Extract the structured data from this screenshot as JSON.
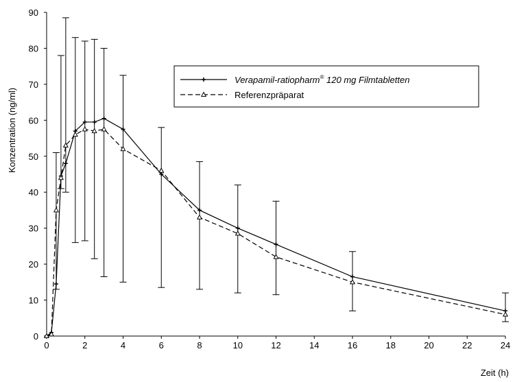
{
  "chart_data": {
    "type": "line",
    "title": "",
    "xlabel": "Zeit (h)",
    "ylabel": "Konzentration (ng/ml)",
    "xlim": [
      0,
      24
    ],
    "ylim": [
      0,
      90
    ],
    "xticks": [
      "0",
      "2",
      "4",
      "6",
      "8",
      "10",
      "12",
      "14",
      "16",
      "18",
      "20",
      "22",
      "24"
    ],
    "yticks": [
      "0",
      "10",
      "20",
      "30",
      "40",
      "50",
      "60",
      "70",
      "80",
      "90"
    ],
    "grid": false,
    "legend_position": "top-right",
    "series": [
      {
        "name": "Verapamil-ratiopharm® 120 mg Filmtabletten",
        "legend_main": "Verapamil-ratiopharm",
        "legend_sup": "®",
        "legend_rest": " 120 mg Filmtabletten",
        "line_style": "solid",
        "marker": "plus",
        "x": [
          0,
          0.25,
          0.5,
          0.75,
          1,
          1.5,
          2,
          2.5,
          3,
          4,
          6,
          8,
          10,
          12,
          16,
          24
        ],
        "y": [
          0,
          1,
          14.5,
          44.5,
          48,
          57,
          59.5,
          59.5,
          60.5,
          57.5,
          45,
          35,
          30,
          25.5,
          16.5,
          7
        ],
        "error_low": [
          0,
          0,
          13,
          41,
          40,
          26,
          26.5,
          21.5,
          16.5,
          15,
          13.5,
          13,
          12,
          11.5,
          7,
          4
        ],
        "error_high": [
          0,
          0,
          51,
          78,
          88.5,
          83,
          82,
          82.5,
          80,
          72.5,
          58,
          48.5,
          42,
          37.5,
          23.5,
          12
        ]
      },
      {
        "name": "Referenzpräparat",
        "line_style": "dashed",
        "marker": "triangle",
        "x": [
          0,
          0.25,
          0.5,
          0.75,
          1,
          1.5,
          2,
          2.5,
          3,
          4,
          6,
          8,
          10,
          12,
          16,
          24
        ],
        "y": [
          0,
          0.5,
          35,
          44,
          53,
          56,
          57.5,
          57,
          57.5,
          52,
          46,
          33,
          28.5,
          22,
          15,
          6
        ],
        "error_low": [],
        "error_high": []
      }
    ]
  }
}
